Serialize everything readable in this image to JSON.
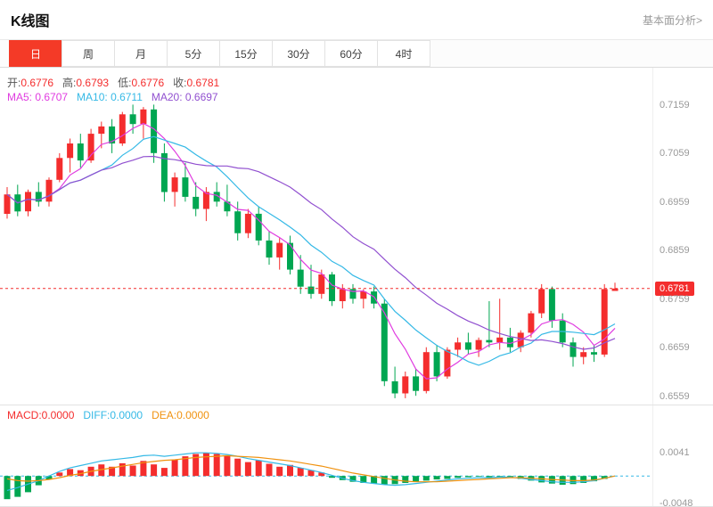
{
  "header": {
    "title": "K线图",
    "link": "基本面分析>"
  },
  "tabs": [
    {
      "label": "日",
      "name": "tab-day",
      "selected": true
    },
    {
      "label": "周",
      "name": "tab-week",
      "selected": false
    },
    {
      "label": "月",
      "name": "tab-month",
      "selected": false
    },
    {
      "label": "5分",
      "name": "tab-5min",
      "selected": false
    },
    {
      "label": "15分",
      "name": "tab-15min",
      "selected": false
    },
    {
      "label": "30分",
      "name": "tab-30min",
      "selected": false
    },
    {
      "label": "60分",
      "name": "tab-60min",
      "selected": false
    },
    {
      "label": "4时",
      "name": "tab-4hour",
      "selected": false
    }
  ],
  "info": {
    "open_label": "开:",
    "open": "0.6776",
    "high_label": "高:",
    "high": "0.6793",
    "low_label": "低:",
    "low": "0.6776",
    "close_label": "收:",
    "close": "0.6781",
    "ma5_label": "MA5: ",
    "ma5": "0.6707",
    "ma10_label": "MA10: ",
    "ma10": "0.6711",
    "ma20_label": "MA20: ",
    "ma20": "0.6697"
  },
  "macd_info": {
    "macd_label": "MACD:",
    "macd": "0.0000",
    "diff_label": "DIFF:",
    "diff": "0.0000",
    "dea_label": "DEA:",
    "dea": "0.0000"
  },
  "colors": {
    "accent": "#f43a27",
    "up": "#f42d2d",
    "down": "#00a651",
    "ma5": "#e03ce0",
    "ma10": "#35b9e6",
    "ma20": "#9150d0",
    "diff": "#35b9e6",
    "dea": "#f0920f",
    "axis_text": "#999999"
  },
  "chart_data": {
    "type": "candlestick",
    "title": "K线图 (日)",
    "legend": [
      "MA5",
      "MA10",
      "MA20",
      "MACD",
      "DIFF",
      "DEA"
    ],
    "main": {
      "y_ticks": [
        "0.7159",
        "0.7059",
        "0.6959",
        "0.6859",
        "0.6759",
        "0.6659",
        "0.6559"
      ],
      "y_tick_values": [
        0.7159,
        0.7059,
        0.6959,
        0.6859,
        0.6759,
        0.6659,
        0.6559
      ],
      "y_range": [
        0.6542,
        0.7236
      ],
      "current_price": 0.6781,
      "current_price_label": "0.6781",
      "ma_periods": [
        5,
        10,
        20
      ],
      "candles": [
        [
          0.6935,
          0.699,
          0.6925,
          0.6975
        ],
        [
          0.6975,
          0.6995,
          0.693,
          0.694
        ],
        [
          0.694,
          0.6985,
          0.693,
          0.698
        ],
        [
          0.698,
          0.7,
          0.695,
          0.696
        ],
        [
          0.696,
          0.701,
          0.695,
          0.7005
        ],
        [
          0.7005,
          0.706,
          0.7,
          0.705
        ],
        [
          0.705,
          0.709,
          0.702,
          0.708
        ],
        [
          0.708,
          0.71,
          0.703,
          0.7045
        ],
        [
          0.7045,
          0.711,
          0.704,
          0.71
        ],
        [
          0.71,
          0.7125,
          0.707,
          0.7115
        ],
        [
          0.7115,
          0.713,
          0.706,
          0.708
        ],
        [
          0.708,
          0.7145,
          0.7075,
          0.714
        ],
        [
          0.714,
          0.716,
          0.71,
          0.712
        ],
        [
          0.712,
          0.7155,
          0.709,
          0.715
        ],
        [
          0.715,
          0.716,
          0.704,
          0.706
        ],
        [
          0.706,
          0.708,
          0.696,
          0.698
        ],
        [
          0.698,
          0.702,
          0.695,
          0.701
        ],
        [
          0.701,
          0.704,
          0.696,
          0.697
        ],
        [
          0.697,
          0.7,
          0.693,
          0.6945
        ],
        [
          0.6945,
          0.699,
          0.692,
          0.698
        ],
        [
          0.698,
          0.7,
          0.695,
          0.696
        ],
        [
          0.696,
          0.6995,
          0.693,
          0.694
        ],
        [
          0.694,
          0.696,
          0.688,
          0.6895
        ],
        [
          0.6895,
          0.6945,
          0.6885,
          0.6935
        ],
        [
          0.6935,
          0.695,
          0.687,
          0.688
        ],
        [
          0.688,
          0.69,
          0.683,
          0.6845
        ],
        [
          0.6845,
          0.6885,
          0.682,
          0.6875
        ],
        [
          0.6875,
          0.689,
          0.681,
          0.682
        ],
        [
          0.682,
          0.685,
          0.677,
          0.6785
        ],
        [
          0.6785,
          0.683,
          0.676,
          0.677
        ],
        [
          0.677,
          0.682,
          0.676,
          0.681
        ],
        [
          0.681,
          0.6815,
          0.6745,
          0.6755
        ],
        [
          0.6755,
          0.679,
          0.674,
          0.678
        ],
        [
          0.678,
          0.679,
          0.675,
          0.676
        ],
        [
          0.676,
          0.678,
          0.674,
          0.6775
        ],
        [
          0.6775,
          0.6785,
          0.674,
          0.675
        ],
        [
          0.675,
          0.676,
          0.658,
          0.659
        ],
        [
          0.659,
          0.662,
          0.6555,
          0.6565
        ],
        [
          0.6565,
          0.661,
          0.6555,
          0.66
        ],
        [
          0.66,
          0.6615,
          0.656,
          0.657
        ],
        [
          0.657,
          0.666,
          0.6565,
          0.665
        ],
        [
          0.665,
          0.6665,
          0.659,
          0.66
        ],
        [
          0.66,
          0.666,
          0.6595,
          0.6655
        ],
        [
          0.6655,
          0.668,
          0.664,
          0.667
        ],
        [
          0.667,
          0.669,
          0.6645,
          0.6655
        ],
        [
          0.6655,
          0.668,
          0.664,
          0.6675
        ],
        [
          0.6675,
          0.6755,
          0.666,
          0.667
        ],
        [
          0.667,
          0.676,
          0.6655,
          0.668
        ],
        [
          0.668,
          0.67,
          0.665,
          0.666
        ],
        [
          0.666,
          0.6695,
          0.665,
          0.669
        ],
        [
          0.669,
          0.6735,
          0.668,
          0.673
        ],
        [
          0.673,
          0.679,
          0.672,
          0.678
        ],
        [
          0.678,
          0.6785,
          0.67,
          0.6715
        ],
        [
          0.6715,
          0.673,
          0.666,
          0.667
        ],
        [
          0.667,
          0.668,
          0.662,
          0.664
        ],
        [
          0.664,
          0.666,
          0.6625,
          0.665
        ],
        [
          0.665,
          0.6665,
          0.663,
          0.6645
        ],
        [
          0.6645,
          0.679,
          0.664,
          0.678
        ],
        [
          0.6776,
          0.6793,
          0.6776,
          0.6781
        ]
      ]
    },
    "macd": {
      "y_ticks": [
        "0.0041",
        "-0.0048"
      ],
      "y_tick_values": [
        0.0041,
        -0.0048
      ],
      "y_range": [
        -0.0052,
        0.0091
      ],
      "hist": [
        -0.004,
        -0.0036,
        -0.0028,
        -0.0016,
        -0.0006,
        0.0006,
        0.0012,
        0.001,
        0.0016,
        0.002,
        0.0016,
        0.0022,
        0.0018,
        0.0026,
        0.002,
        0.0014,
        0.0028,
        0.0034,
        0.0038,
        0.004,
        0.0038,
        0.0035,
        0.003,
        0.0024,
        0.0027,
        0.0021,
        0.0016,
        0.0019,
        0.0014,
        0.001,
        0.0006,
        -0.0003,
        -0.0007,
        -0.001,
        -0.0012,
        -0.0013,
        -0.0015,
        -0.0014,
        -0.0012,
        -0.001,
        -0.0008,
        -0.0006,
        -0.0005,
        -0.0003,
        -0.0002,
        -0.0001,
        -0.0002,
        -0.0001,
        -0.0002,
        -0.0005,
        -0.0008,
        -0.0011,
        -0.0013,
        -0.0015,
        -0.0014,
        -0.0012,
        -0.0009,
        -0.0005,
        0.0
      ],
      "diff": [
        -0.0025,
        -0.002,
        -0.0014,
        -0.0008,
        0.0,
        0.0008,
        0.0014,
        0.0018,
        0.0022,
        0.0026,
        0.0028,
        0.003,
        0.0032,
        0.0035,
        0.0036,
        0.0034,
        0.0036,
        0.0038,
        0.004,
        0.004,
        0.0039,
        0.0037,
        0.0034,
        0.003,
        0.0027,
        0.0024,
        0.0021,
        0.0018,
        0.0014,
        0.001,
        0.0006,
        0.0001,
        -0.0004,
        -0.0008,
        -0.0011,
        -0.0013,
        -0.0015,
        -0.0016,
        -0.0015,
        -0.0013,
        -0.0011,
        -0.0009,
        -0.0007,
        -0.0005,
        -0.0004,
        -0.0003,
        -0.0003,
        -0.0002,
        -0.0002,
        -0.0004,
        -0.0006,
        -0.0008,
        -0.001,
        -0.0011,
        -0.0011,
        -0.001,
        -0.0008,
        -0.0004,
        0.0
      ],
      "dea": [
        -0.0005,
        -0.0008,
        -0.0009,
        -0.0008,
        -0.0006,
        -0.0003,
        0.0001,
        0.0004,
        0.0008,
        0.0011,
        0.0014,
        0.0017,
        0.002,
        0.0023,
        0.0025,
        0.0027,
        0.0028,
        0.003,
        0.0032,
        0.0033,
        0.0034,
        0.0035,
        0.0034,
        0.0033,
        0.0032,
        0.003,
        0.0028,
        0.0026,
        0.0023,
        0.002,
        0.0017,
        0.0013,
        0.0009,
        0.0005,
        0.0002,
        -0.0001,
        -0.0004,
        -0.0007,
        -0.0009,
        -0.001,
        -0.001,
        -0.001,
        -0.0009,
        -0.0008,
        -0.0007,
        -0.0006,
        -0.0005,
        -0.0004,
        -0.0003,
        -0.0003,
        -0.0004,
        -0.0005,
        -0.0006,
        -0.0007,
        -0.0008,
        -0.0008,
        -0.0007,
        -0.0004,
        0.0
      ]
    }
  }
}
